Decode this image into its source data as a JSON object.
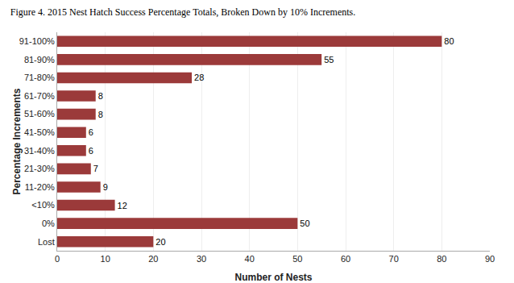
{
  "chart_data": {
    "type": "bar",
    "orientation": "horizontal",
    "title": "Figure 4. 2015 Nest Hatch Success Percentage Totals, Broken Down by 10% Increments.",
    "categories": [
      "91-100%",
      "81-90%",
      "71-80%",
      "61-70%",
      "51-60%",
      "41-50%",
      "31-40%",
      "21-30%",
      "11-20%",
      "<10%",
      "0%",
      "Lost"
    ],
    "values": [
      80,
      55,
      28,
      8,
      8,
      6,
      6,
      7,
      9,
      12,
      50,
      20
    ],
    "color": "#9B3A3A",
    "xlabel": "Number of Nests",
    "ylabel": "Percentage Increments",
    "xlim": [
      0,
      90
    ],
    "xticks": [
      0,
      10,
      20,
      30,
      40,
      50,
      60,
      70,
      80,
      90
    ],
    "grid": true,
    "data_labels": true
  }
}
